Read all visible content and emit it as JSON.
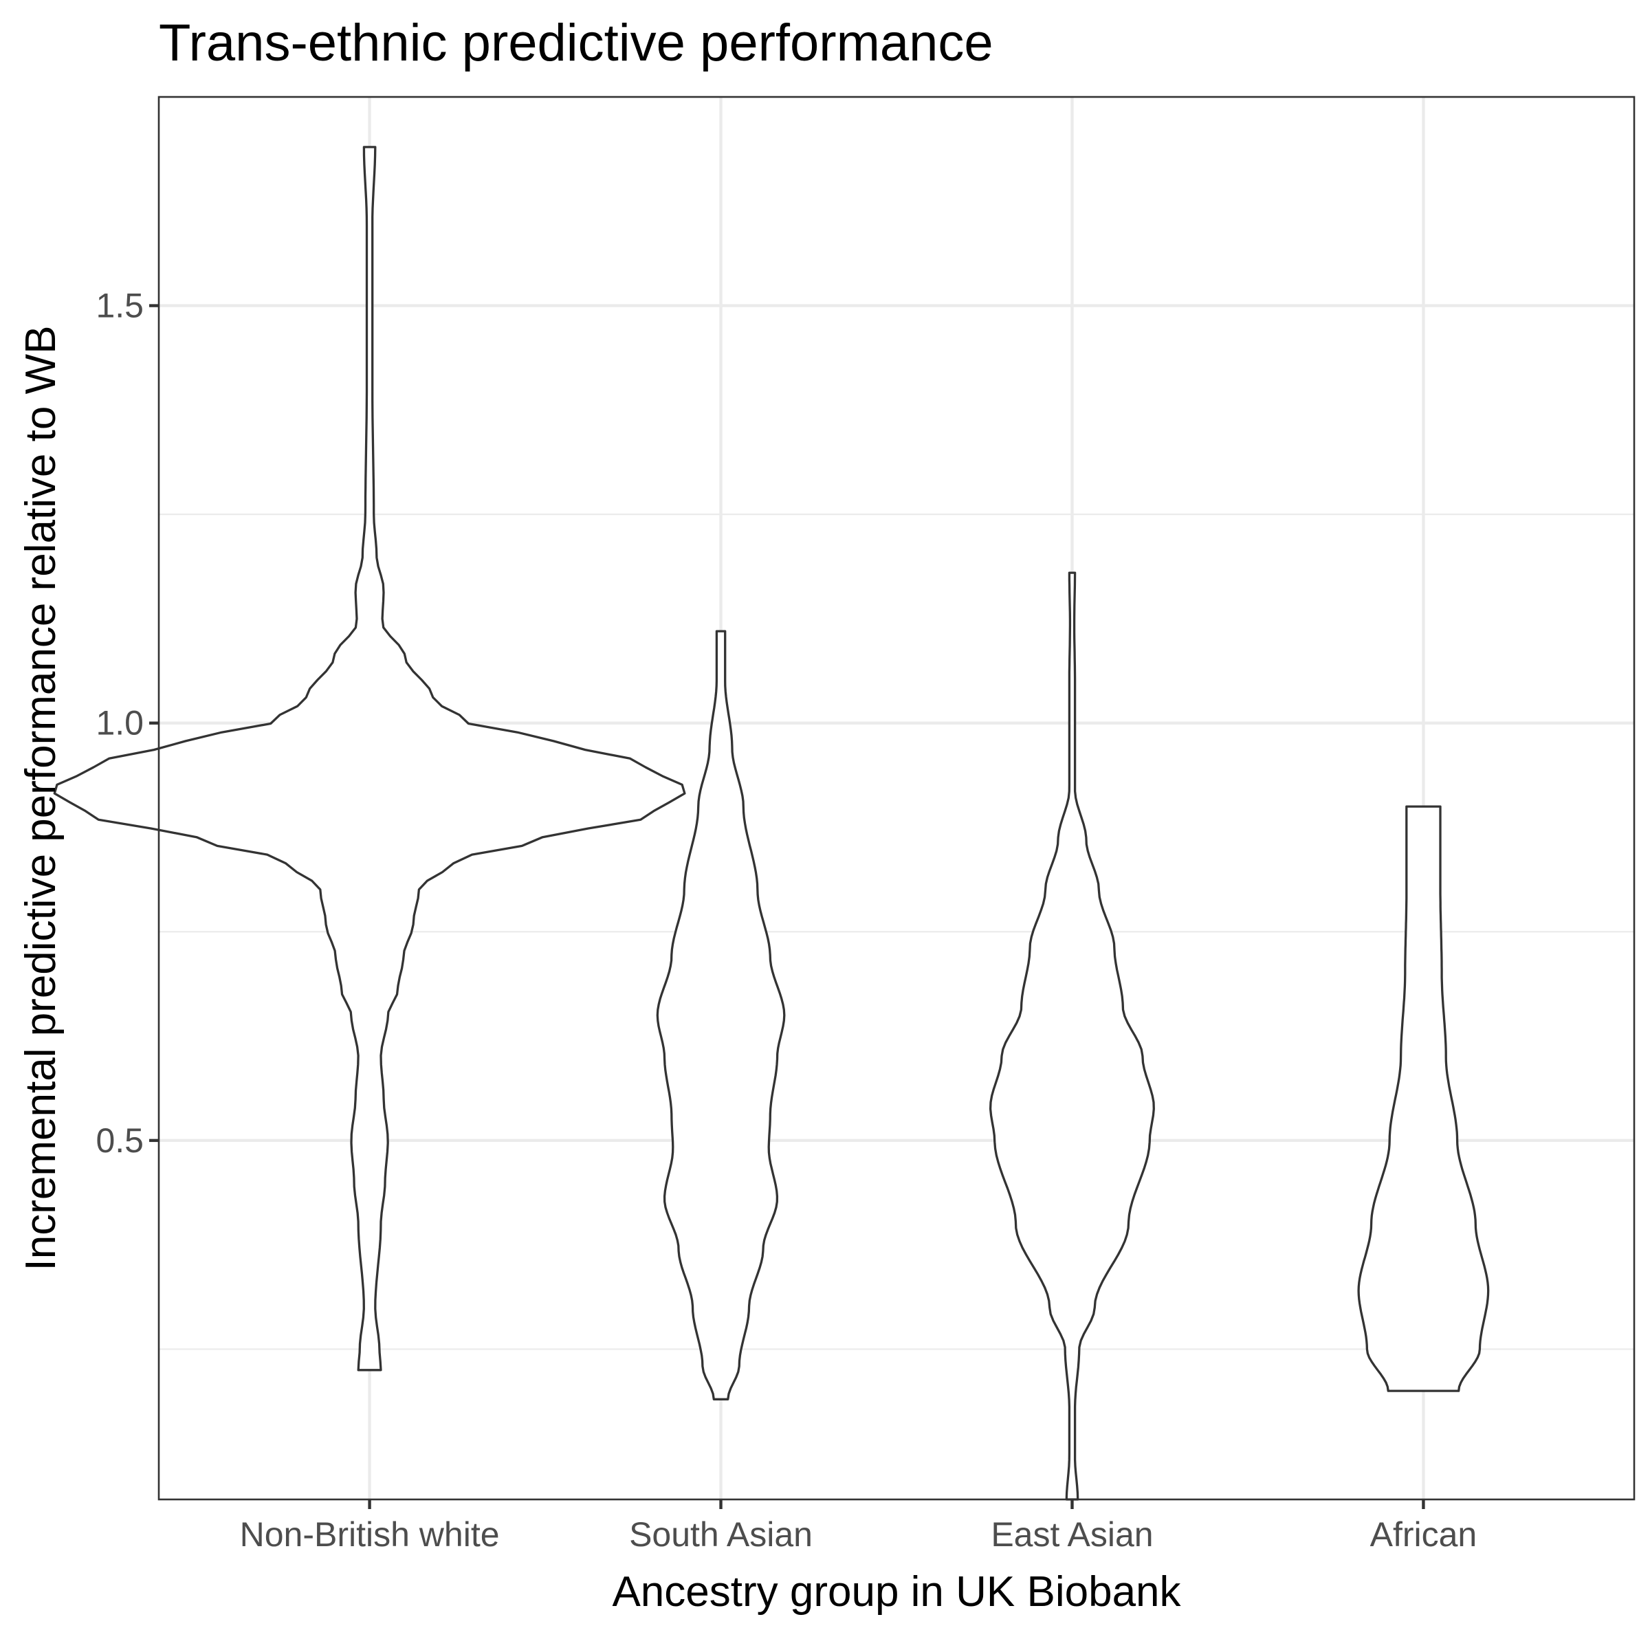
{
  "chart_data": {
    "type": "violin",
    "title": "Trans-ethnic predictive performance",
    "xlabel": "Ancestry group in UK Biobank",
    "ylabel": "Incremental predictive performance relative to WB",
    "ylim": [
      0.07,
      1.75
    ],
    "y_ticks": [
      0.5,
      1.0,
      1.5
    ],
    "y_tick_labels": [
      "0.5",
      "1.0",
      "1.5"
    ],
    "y_minor_ticks": [
      0.25,
      0.75,
      1.25
    ],
    "grid": true,
    "categories": [
      "Non-British white",
      "South Asian",
      "East Asian",
      "African"
    ],
    "series": [
      {
        "category": "Non-British white",
        "min": 0.225,
        "max": 1.69,
        "profile": [
          [
            0.225,
            0.008
          ],
          [
            0.25,
            0.007
          ],
          [
            0.3,
            0.004
          ],
          [
            0.4,
            0.008
          ],
          [
            0.45,
            0.011
          ],
          [
            0.5,
            0.013
          ],
          [
            0.55,
            0.01
          ],
          [
            0.6,
            0.008
          ],
          [
            0.65,
            0.013
          ],
          [
            0.68,
            0.02
          ],
          [
            0.72,
            0.024
          ],
          [
            0.76,
            0.031
          ],
          [
            0.8,
            0.035
          ],
          [
            0.835,
            0.06
          ],
          [
            0.86,
            0.12
          ],
          [
            0.89,
            0.2
          ],
          [
            0.92,
            0.225
          ],
          [
            0.95,
            0.195
          ],
          [
            0.98,
            0.13
          ],
          [
            1.0,
            0.07
          ],
          [
            1.03,
            0.045
          ],
          [
            1.08,
            0.025
          ],
          [
            1.12,
            0.009
          ],
          [
            1.16,
            0.01
          ],
          [
            1.2,
            0.005
          ],
          [
            1.25,
            0.003
          ],
          [
            1.4,
            0.002
          ],
          [
            1.6,
            0.002
          ],
          [
            1.69,
            0.004
          ]
        ]
      },
      {
        "category": "South Asian",
        "min": 0.19,
        "max": 1.11,
        "profile": [
          [
            0.19,
            0.005
          ],
          [
            0.23,
            0.013
          ],
          [
            0.3,
            0.02
          ],
          [
            0.37,
            0.03
          ],
          [
            0.43,
            0.04
          ],
          [
            0.49,
            0.034
          ],
          [
            0.53,
            0.035
          ],
          [
            0.6,
            0.04
          ],
          [
            0.65,
            0.045
          ],
          [
            0.72,
            0.035
          ],
          [
            0.8,
            0.026
          ],
          [
            0.9,
            0.016
          ],
          [
            0.97,
            0.008
          ],
          [
            1.05,
            0.003
          ],
          [
            1.11,
            0.003
          ]
        ]
      },
      {
        "category": "East Asian",
        "min": 0.07,
        "max": 1.18,
        "profile": [
          [
            0.07,
            0.004
          ],
          [
            0.12,
            0.002
          ],
          [
            0.18,
            0.002
          ],
          [
            0.25,
            0.005
          ],
          [
            0.3,
            0.016
          ],
          [
            0.4,
            0.04
          ],
          [
            0.5,
            0.055
          ],
          [
            0.54,
            0.058
          ],
          [
            0.6,
            0.05
          ],
          [
            0.66,
            0.036
          ],
          [
            0.73,
            0.03
          ],
          [
            0.8,
            0.019
          ],
          [
            0.86,
            0.01
          ],
          [
            0.92,
            0.002
          ],
          [
            1.0,
            0.002
          ],
          [
            1.05,
            0.002
          ],
          [
            1.12,
            0.0015
          ],
          [
            1.18,
            0.002
          ]
        ]
      },
      {
        "category": "African",
        "min": 0.2,
        "max": 0.9,
        "profile": [
          [
            0.2,
            0.025
          ],
          [
            0.25,
            0.04
          ],
          [
            0.32,
            0.046
          ],
          [
            0.4,
            0.037
          ],
          [
            0.5,
            0.024
          ],
          [
            0.6,
            0.016
          ],
          [
            0.7,
            0.013
          ],
          [
            0.8,
            0.012
          ],
          [
            0.9,
            0.012
          ]
        ]
      }
    ]
  }
}
